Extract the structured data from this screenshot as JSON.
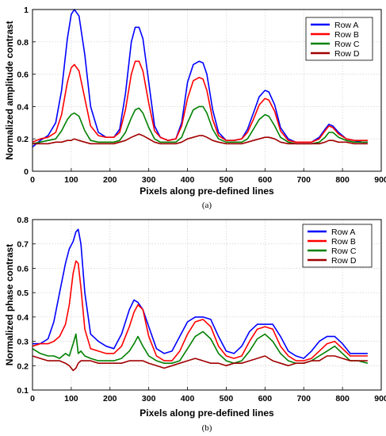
{
  "chart_data": [
    {
      "type": "line",
      "panel_label": "(a)",
      "xlabel": "Pixels along pre-defined lines",
      "ylabel": "Normalized amplitude contrast",
      "xlim": [
        0,
        900
      ],
      "ylim": [
        0,
        1
      ],
      "xticks": [
        0,
        100,
        200,
        300,
        400,
        500,
        600,
        700,
        800,
        900
      ],
      "yticks": [
        0,
        0.2,
        0.4,
        0.6,
        0.8,
        1
      ],
      "ytick_labels": [
        "0",
        "0.2",
        "0.4",
        "0.6",
        "0.8",
        "1"
      ],
      "grid": true,
      "legend_position": "top-right",
      "series": [
        {
          "name": "Row A",
          "color": "#0000ff",
          "x": [
            0,
            20,
            40,
            60,
            75,
            90,
            100,
            108,
            120,
            135,
            150,
            170,
            190,
            210,
            225,
            240,
            255,
            265,
            275,
            285,
            300,
            315,
            330,
            350,
            370,
            385,
            400,
            415,
            430,
            440,
            450,
            465,
            480,
            500,
            520,
            540,
            555,
            570,
            585,
            600,
            610,
            625,
            640,
            660,
            680,
            700,
            720,
            740,
            755,
            765,
            775,
            790,
            810,
            830,
            850,
            865
          ],
          "y": [
            0.15,
            0.19,
            0.22,
            0.3,
            0.5,
            0.82,
            0.97,
            1.0,
            0.96,
            0.72,
            0.4,
            0.24,
            0.21,
            0.21,
            0.26,
            0.48,
            0.8,
            0.89,
            0.89,
            0.82,
            0.55,
            0.28,
            0.21,
            0.19,
            0.2,
            0.3,
            0.55,
            0.66,
            0.68,
            0.67,
            0.6,
            0.38,
            0.24,
            0.19,
            0.19,
            0.2,
            0.26,
            0.36,
            0.46,
            0.5,
            0.49,
            0.41,
            0.27,
            0.2,
            0.18,
            0.18,
            0.18,
            0.21,
            0.26,
            0.29,
            0.28,
            0.24,
            0.2,
            0.19,
            0.18,
            0.18
          ]
        },
        {
          "name": "Row B",
          "color": "#ff0000",
          "x": [
            0,
            20,
            40,
            60,
            75,
            90,
            100,
            108,
            120,
            135,
            150,
            170,
            190,
            210,
            225,
            240,
            255,
            265,
            275,
            285,
            300,
            315,
            330,
            350,
            370,
            385,
            400,
            415,
            430,
            440,
            450,
            465,
            480,
            500,
            520,
            540,
            555,
            570,
            585,
            600,
            610,
            625,
            640,
            660,
            680,
            700,
            720,
            740,
            755,
            765,
            775,
            790,
            810,
            830,
            850,
            865
          ],
          "y": [
            0.18,
            0.2,
            0.21,
            0.24,
            0.35,
            0.55,
            0.64,
            0.66,
            0.62,
            0.45,
            0.28,
            0.22,
            0.21,
            0.21,
            0.24,
            0.38,
            0.6,
            0.68,
            0.68,
            0.62,
            0.42,
            0.25,
            0.21,
            0.19,
            0.2,
            0.28,
            0.45,
            0.56,
            0.58,
            0.57,
            0.5,
            0.32,
            0.22,
            0.19,
            0.19,
            0.2,
            0.24,
            0.32,
            0.41,
            0.45,
            0.44,
            0.37,
            0.25,
            0.19,
            0.18,
            0.18,
            0.18,
            0.2,
            0.25,
            0.28,
            0.27,
            0.23,
            0.2,
            0.19,
            0.19,
            0.19
          ]
        },
        {
          "name": "Row C",
          "color": "#008000",
          "x": [
            0,
            20,
            40,
            60,
            75,
            90,
            100,
            108,
            120,
            135,
            150,
            170,
            190,
            210,
            225,
            240,
            255,
            265,
            275,
            285,
            300,
            315,
            330,
            350,
            370,
            385,
            400,
            415,
            430,
            440,
            450,
            465,
            480,
            500,
            520,
            540,
            555,
            570,
            585,
            600,
            610,
            625,
            640,
            660,
            680,
            700,
            720,
            740,
            755,
            765,
            775,
            790,
            810,
            830,
            850,
            865
          ],
          "y": [
            0.17,
            0.18,
            0.19,
            0.2,
            0.25,
            0.32,
            0.35,
            0.36,
            0.34,
            0.25,
            0.19,
            0.18,
            0.18,
            0.18,
            0.19,
            0.24,
            0.33,
            0.38,
            0.39,
            0.36,
            0.27,
            0.2,
            0.18,
            0.18,
            0.18,
            0.21,
            0.3,
            0.38,
            0.4,
            0.4,
            0.36,
            0.26,
            0.2,
            0.18,
            0.18,
            0.18,
            0.2,
            0.26,
            0.32,
            0.35,
            0.34,
            0.28,
            0.21,
            0.18,
            0.17,
            0.17,
            0.17,
            0.18,
            0.21,
            0.24,
            0.24,
            0.21,
            0.19,
            0.18,
            0.18,
            0.18
          ]
        },
        {
          "name": "Row D",
          "color": "#a00000",
          "x": [
            0,
            20,
            40,
            60,
            75,
            90,
            100,
            108,
            120,
            135,
            150,
            170,
            190,
            210,
            225,
            240,
            255,
            265,
            275,
            285,
            300,
            315,
            330,
            350,
            370,
            385,
            400,
            415,
            430,
            440,
            450,
            465,
            480,
            500,
            520,
            540,
            555,
            570,
            585,
            600,
            610,
            625,
            640,
            660,
            680,
            700,
            720,
            740,
            755,
            765,
            775,
            790,
            810,
            830,
            850,
            865
          ],
          "y": [
            0.17,
            0.17,
            0.17,
            0.18,
            0.18,
            0.19,
            0.19,
            0.2,
            0.19,
            0.18,
            0.17,
            0.17,
            0.17,
            0.17,
            0.18,
            0.19,
            0.21,
            0.22,
            0.23,
            0.22,
            0.2,
            0.18,
            0.17,
            0.17,
            0.17,
            0.18,
            0.2,
            0.21,
            0.22,
            0.22,
            0.21,
            0.19,
            0.18,
            0.17,
            0.17,
            0.17,
            0.18,
            0.19,
            0.2,
            0.21,
            0.21,
            0.2,
            0.18,
            0.17,
            0.17,
            0.17,
            0.17,
            0.17,
            0.18,
            0.19,
            0.19,
            0.18,
            0.18,
            0.17,
            0.17,
            0.17
          ]
        }
      ]
    },
    {
      "type": "line",
      "panel_label": "(b)",
      "xlabel": "Pixels along pre-defined lines",
      "ylabel": "Normalized phase contrast",
      "xlim": [
        0,
        900
      ],
      "ylim": [
        0.1,
        0.8
      ],
      "xticks": [
        0,
        100,
        200,
        300,
        400,
        500,
        600,
        700,
        800,
        900
      ],
      "yticks": [
        0.1,
        0.2,
        0.3,
        0.4,
        0.5,
        0.6,
        0.7,
        0.8
      ],
      "ytick_labels": [
        "0.1",
        "0.2",
        "0.3",
        "0.4",
        "0.5",
        "0.6",
        "0.7",
        "0.8"
      ],
      "grid": true,
      "legend_position": "top-right",
      "series": [
        {
          "name": "Row A",
          "color": "#0000ff",
          "x": [
            0,
            20,
            40,
            55,
            70,
            85,
            95,
            105,
            112,
            118,
            125,
            135,
            150,
            170,
            190,
            210,
            230,
            250,
            262,
            272,
            285,
            300,
            320,
            340,
            360,
            380,
            400,
            420,
            440,
            460,
            480,
            500,
            520,
            540,
            560,
            580,
            600,
            620,
            640,
            660,
            680,
            700,
            720,
            740,
            760,
            780,
            800,
            820,
            840,
            865
          ],
          "y": [
            0.29,
            0.29,
            0.31,
            0.38,
            0.5,
            0.62,
            0.68,
            0.71,
            0.75,
            0.76,
            0.7,
            0.5,
            0.33,
            0.3,
            0.28,
            0.27,
            0.33,
            0.43,
            0.47,
            0.46,
            0.43,
            0.36,
            0.27,
            0.25,
            0.26,
            0.32,
            0.38,
            0.4,
            0.4,
            0.39,
            0.32,
            0.26,
            0.25,
            0.28,
            0.34,
            0.37,
            0.37,
            0.37,
            0.32,
            0.26,
            0.24,
            0.23,
            0.26,
            0.3,
            0.32,
            0.32,
            0.29,
            0.25,
            0.25,
            0.25
          ]
        },
        {
          "name": "Row B",
          "color": "#ff0000",
          "x": [
            0,
            20,
            40,
            55,
            70,
            85,
            95,
            105,
            112,
            118,
            125,
            135,
            150,
            170,
            190,
            210,
            230,
            250,
            262,
            272,
            285,
            300,
            320,
            340,
            360,
            380,
            400,
            420,
            440,
            460,
            480,
            500,
            520,
            540,
            560,
            580,
            600,
            620,
            640,
            660,
            680,
            700,
            720,
            740,
            760,
            780,
            800,
            820,
            840,
            865
          ],
          "y": [
            0.28,
            0.29,
            0.29,
            0.3,
            0.32,
            0.37,
            0.45,
            0.58,
            0.63,
            0.62,
            0.52,
            0.35,
            0.27,
            0.26,
            0.25,
            0.25,
            0.28,
            0.36,
            0.42,
            0.45,
            0.43,
            0.32,
            0.24,
            0.22,
            0.22,
            0.26,
            0.33,
            0.38,
            0.39,
            0.36,
            0.28,
            0.24,
            0.23,
            0.24,
            0.3,
            0.35,
            0.36,
            0.35,
            0.28,
            0.24,
            0.22,
            0.22,
            0.23,
            0.26,
            0.29,
            0.3,
            0.27,
            0.24,
            0.24,
            0.24
          ]
        },
        {
          "name": "Row C",
          "color": "#008000",
          "x": [
            0,
            20,
            40,
            55,
            70,
            85,
            95,
            105,
            112,
            118,
            125,
            135,
            150,
            170,
            190,
            210,
            230,
            250,
            262,
            272,
            285,
            300,
            320,
            340,
            360,
            380,
            400,
            420,
            440,
            460,
            480,
            500,
            520,
            540,
            560,
            580,
            600,
            620,
            640,
            660,
            680,
            700,
            720,
            740,
            760,
            780,
            800,
            820,
            840,
            865
          ],
          "y": [
            0.27,
            0.25,
            0.24,
            0.24,
            0.23,
            0.25,
            0.24,
            0.29,
            0.33,
            0.25,
            0.26,
            0.24,
            0.23,
            0.22,
            0.22,
            0.22,
            0.23,
            0.26,
            0.29,
            0.32,
            0.28,
            0.24,
            0.22,
            0.21,
            0.21,
            0.22,
            0.27,
            0.32,
            0.34,
            0.31,
            0.25,
            0.22,
            0.21,
            0.22,
            0.26,
            0.31,
            0.33,
            0.3,
            0.25,
            0.22,
            0.21,
            0.21,
            0.22,
            0.24,
            0.26,
            0.28,
            0.25,
            0.22,
            0.22,
            0.21
          ]
        },
        {
          "name": "Row D",
          "color": "#a00000",
          "x": [
            0,
            20,
            40,
            55,
            70,
            85,
            95,
            105,
            112,
            118,
            125,
            135,
            150,
            170,
            190,
            210,
            230,
            250,
            262,
            272,
            285,
            300,
            320,
            340,
            360,
            380,
            400,
            420,
            440,
            460,
            480,
            500,
            520,
            540,
            560,
            580,
            600,
            620,
            640,
            660,
            680,
            700,
            720,
            740,
            760,
            780,
            800,
            820,
            840,
            865
          ],
          "y": [
            0.24,
            0.23,
            0.22,
            0.22,
            0.22,
            0.21,
            0.2,
            0.18,
            0.19,
            0.21,
            0.22,
            0.22,
            0.22,
            0.21,
            0.21,
            0.21,
            0.21,
            0.22,
            0.22,
            0.22,
            0.22,
            0.21,
            0.2,
            0.19,
            0.2,
            0.21,
            0.22,
            0.23,
            0.22,
            0.21,
            0.21,
            0.2,
            0.21,
            0.21,
            0.22,
            0.23,
            0.24,
            0.22,
            0.21,
            0.2,
            0.21,
            0.21,
            0.22,
            0.22,
            0.24,
            0.24,
            0.23,
            0.22,
            0.22,
            0.22
          ]
        }
      ]
    }
  ]
}
